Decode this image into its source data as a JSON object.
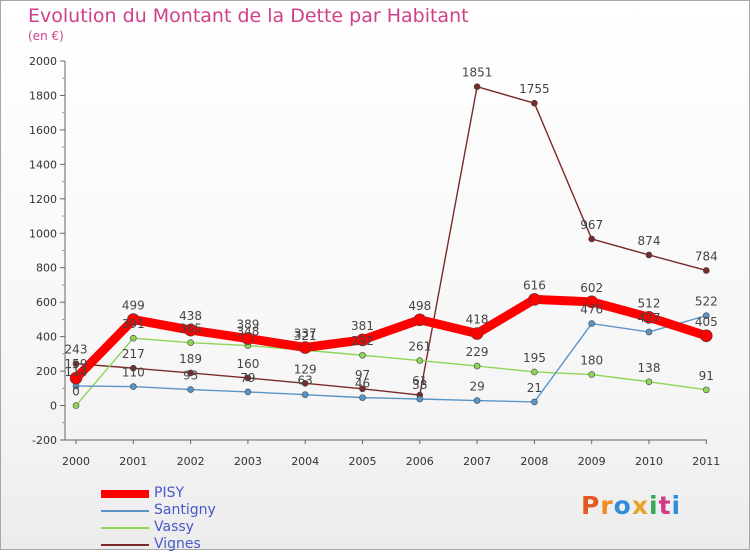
{
  "title": "Evolution du Montant de la Dette par Habitant",
  "unit": "(en €)",
  "logo": {
    "text": "Proxiti",
    "colors": [
      "#e25a22",
      "#f08c20",
      "#2f8ed8",
      "#e8a22a",
      "#34a853",
      "#d23a87",
      "#2f8ed8"
    ]
  },
  "chart_data": {
    "type": "line",
    "x": [
      "2000",
      "2001",
      "2002",
      "2003",
      "2004",
      "2005",
      "2006",
      "2007",
      "2008",
      "2009",
      "2010",
      "2011"
    ],
    "ylim": [
      -200,
      2000
    ],
    "yticks": [
      -200,
      0,
      200,
      400,
      600,
      800,
      1000,
      1200,
      1400,
      1600,
      1800,
      2000
    ],
    "grid": false,
    "legend_position": "bottom-left",
    "series": [
      {
        "name": "PISY",
        "color": "#ff0000",
        "values": [
          159,
          499,
          438,
          389,
          337,
          381,
          498,
          418,
          616,
          602,
          512,
          405
        ]
      },
      {
        "name": "Santigny",
        "color": "#5b95c8",
        "values": [
          114,
          110,
          93,
          79,
          63,
          46,
          38,
          29,
          21,
          476,
          427,
          522
        ]
      },
      {
        "name": "Vassy",
        "color": "#8ed657",
        "values": [
          0,
          391,
          365,
          348,
          321,
          292,
          261,
          229,
          195,
          180,
          138,
          91
        ]
      },
      {
        "name": "Vignes",
        "color": "#7a2a2a",
        "values": [
          243,
          217,
          189,
          160,
          129,
          97,
          61,
          1851,
          1755,
          967,
          874,
          784
        ]
      }
    ]
  }
}
